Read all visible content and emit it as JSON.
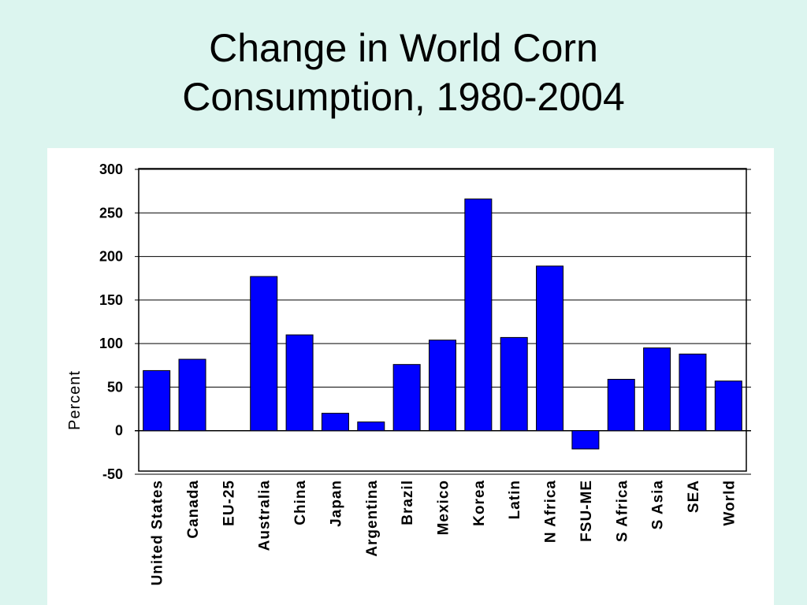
{
  "slide": {
    "title_line1": "Change in World Corn",
    "title_line2": "Consumption, 1980-2004"
  },
  "colors": {
    "background": "#dcf5ef",
    "panel": "#ffffff",
    "bar": "#0000ff"
  },
  "chart_data": {
    "type": "bar",
    "title": "Change in World Corn Consumption, 1980-2004",
    "ylabel": "Percent",
    "xlabel": "",
    "ylim": [
      -50,
      300
    ],
    "yticks": [
      300,
      250,
      200,
      150,
      100,
      50,
      0,
      -50
    ],
    "grid": true,
    "categories": [
      "United States",
      "Canada",
      "EU-25",
      "Australia",
      "China",
      "Japan",
      "Argentina",
      "Brazil",
      "Mexico",
      "Korea",
      "Latin",
      "N Africa",
      "FSU-ME",
      "S Africa",
      "S Asia",
      "SEA",
      "World"
    ],
    "values": [
      69,
      82,
      0,
      177,
      110,
      20,
      10,
      76,
      104,
      266,
      107,
      189,
      -21,
      59,
      95,
      88,
      57
    ]
  }
}
